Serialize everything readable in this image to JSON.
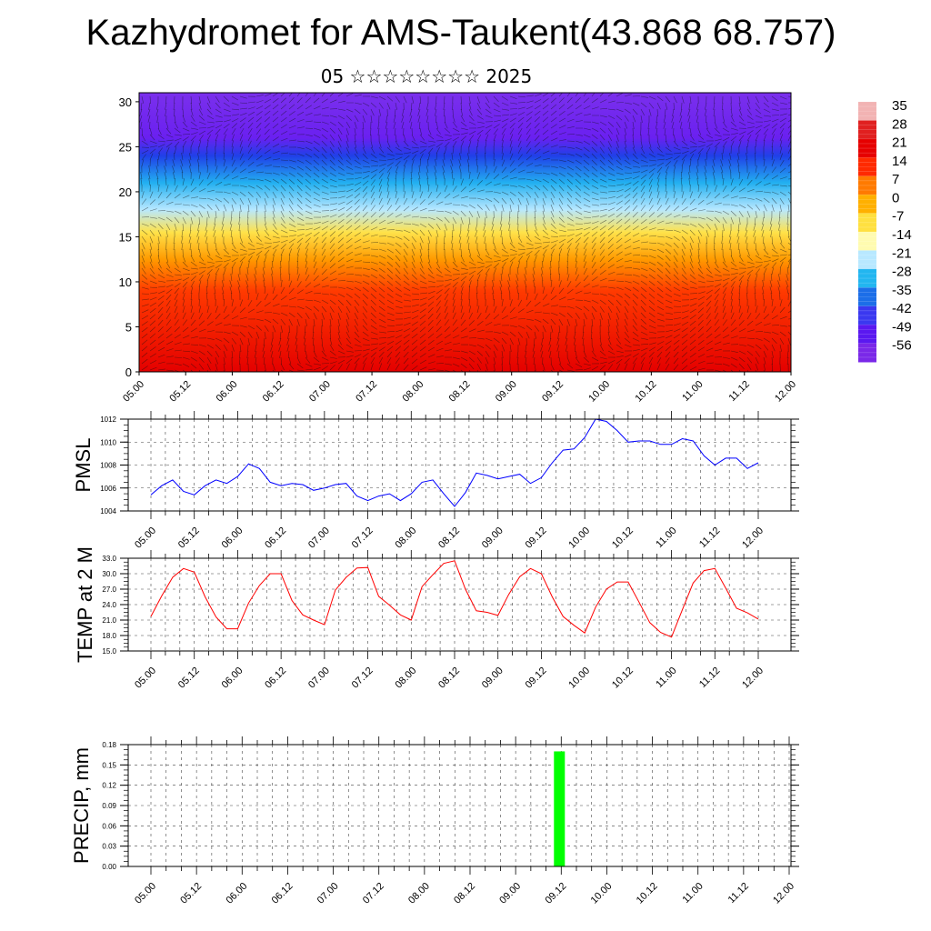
{
  "header": {
    "title": "Kazhydromet for AMS-Taukent(43.868 68.757)",
    "subtitle": "05 ☆☆☆☆☆☆☆☆ 2025"
  },
  "colors": {
    "pmsl_line": "#0000ff",
    "temp_line": "#ff0000",
    "precip_bar": "#00ff00",
    "grid": "#444444"
  },
  "time_labels": [
    "05.00",
    "05.12",
    "06.00",
    "06.12",
    "07.00",
    "07.12",
    "08.00",
    "08.12",
    "09.00",
    "09.12",
    "10.00",
    "10.12",
    "11.00",
    "11.12",
    "12.00"
  ],
  "chart_data": [
    {
      "type": "heatmap",
      "name": "cross-section",
      "x_ticks": [
        "05.00",
        "05.12",
        "06.00",
        "06.12",
        "07.00",
        "07.12",
        "08.00",
        "08.12",
        "09.00",
        "09.12",
        "10.00",
        "10.12",
        "11.00",
        "11.12",
        "12.00"
      ],
      "y_ticks": [
        "0",
        "5",
        "10",
        "15",
        "20",
        "25",
        "30"
      ],
      "ylim": [
        0,
        31
      ],
      "colorbar": {
        "labels": [
          "35",
          "28",
          "21",
          "14",
          "7",
          "0",
          "-7",
          "-14",
          "-21",
          "-28",
          "-35",
          "-42",
          "-49",
          "-56"
        ],
        "colors": [
          "#f2b3b3",
          "#e02020",
          "#e60000",
          "#ff2a00",
          "#ff7a00",
          "#ffb000",
          "#ffe040",
          "#fffbb0",
          "#b8e8ff",
          "#22b6f0",
          "#1c6ee8",
          "#3a38f0",
          "#5a18f0",
          "#7a28e8"
        ]
      },
      "layers": [
        {
          "level": 0,
          "color": "#e40000"
        },
        {
          "level": 9,
          "color": "#ff3a00"
        },
        {
          "level": 12.5,
          "color": "#ff9a00"
        },
        {
          "level": 15.5,
          "color": "#ffe24a"
        },
        {
          "level": 18,
          "color": "#b8e8ff"
        },
        {
          "level": 21,
          "color": "#22b0f0"
        },
        {
          "level": 24,
          "color": "#2040e8"
        },
        {
          "level": 26,
          "color": "#6a20f0"
        },
        {
          "level": 31,
          "color": "#7a30ec"
        }
      ]
    },
    {
      "type": "line",
      "ylabel": "PMSL",
      "yticks": [
        "1004",
        "1006",
        "1008",
        "1010",
        "1012"
      ],
      "ylim": [
        1004,
        1012
      ],
      "x_ticks": [
        "05.00",
        "05.12",
        "06.00",
        "06.12",
        "07.00",
        "07.12",
        "08.00",
        "08.12",
        "09.00",
        "09.12",
        "10.00",
        "10.12",
        "11.00",
        "11.12",
        "12.00"
      ],
      "series": [
        {
          "values": [
            1005.4,
            1006.2,
            1006.7,
            1005.7,
            1005.4,
            1006.2,
            1006.7,
            1006.4,
            1007.0,
            1008.1,
            1007.7,
            1006.5,
            1006.2,
            1006.4,
            1006.3,
            1005.8,
            1006.0,
            1006.3,
            1006.4,
            1005.3,
            1004.9,
            1005.3,
            1005.5,
            1004.9,
            1005.5,
            1006.5,
            1006.7,
            1005.5,
            1004.4,
            1005.6,
            1007.3,
            1007.1,
            1006.8,
            1007.0,
            1007.2,
            1006.4,
            1006.9,
            1008.2,
            1009.3,
            1009.4,
            1010.4,
            1012.0,
            1011.8,
            1011.0,
            1010.0,
            1010.1,
            1010.1,
            1009.8,
            1009.8,
            1010.3,
            1010.1,
            1008.8,
            1008.0,
            1008.6,
            1008.6,
            1007.7,
            1008.2
          ]
        }
      ]
    },
    {
      "type": "line",
      "ylabel": "TEMP at 2 M",
      "yticks": [
        "15.0",
        "18.0",
        "21.0",
        "24.0",
        "27.0",
        "30.0",
        "33.0"
      ],
      "ylim": [
        15,
        33
      ],
      "x_ticks": [
        "05.00",
        "05.12",
        "06.00",
        "06.12",
        "07.00",
        "07.12",
        "08.00",
        "08.12",
        "09.00",
        "09.12",
        "10.00",
        "10.12",
        "11.00",
        "11.12",
        "12.00"
      ],
      "series": [
        {
          "values": [
            21.7,
            25.7,
            29.3,
            31.0,
            30.3,
            25.5,
            21.6,
            19.3,
            19.3,
            24.3,
            27.7,
            30.0,
            30.0,
            24.8,
            22.0,
            21.0,
            20.1,
            26.8,
            29.3,
            31.1,
            31.2,
            25.6,
            23.9,
            22.0,
            21.0,
            27.5,
            29.8,
            32.0,
            32.5,
            27.0,
            22.8,
            22.5,
            21.9,
            26.0,
            29.4,
            31.0,
            30.0,
            25.5,
            21.7,
            20.0,
            18.5,
            23.5,
            27.0,
            28.4,
            28.4,
            24.5,
            20.5,
            18.6,
            17.7,
            23.0,
            28.2,
            30.6,
            31.0,
            27.2,
            23.3,
            22.4,
            21.2
          ]
        }
      ]
    },
    {
      "type": "bar",
      "ylabel": "PRECIP, mm",
      "yticks": [
        "0.00",
        "0.03",
        "0.06",
        "0.09",
        "0.12",
        "0.15",
        "0.18"
      ],
      "ylim": [
        0,
        0.18
      ],
      "x_ticks": [
        "05.00",
        "05.12",
        "06.00",
        "06.12",
        "07.00",
        "07.12",
        "08.00",
        "08.12",
        "09.00",
        "09.12",
        "10.00",
        "10.12",
        "11.00",
        "11.12",
        "12.00"
      ],
      "bars": [
        {
          "x": "09.12",
          "value": 0.17
        }
      ]
    }
  ]
}
